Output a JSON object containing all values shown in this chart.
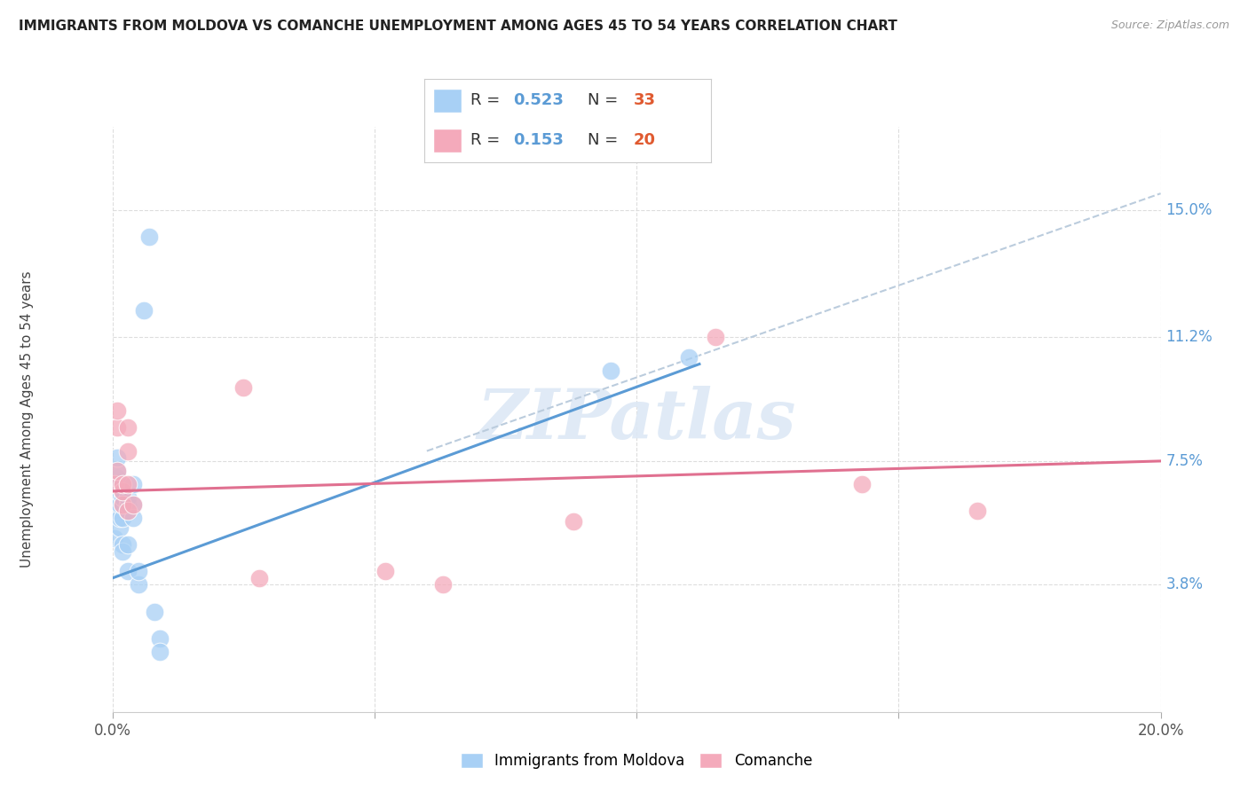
{
  "title": "IMMIGRANTS FROM MOLDOVA VS COMANCHE UNEMPLOYMENT AMONG AGES 45 TO 54 YEARS CORRELATION CHART",
  "source": "Source: ZipAtlas.com",
  "ylabel": "Unemployment Among Ages 45 to 54 years",
  "xlim": [
    0.0,
    0.2
  ],
  "ylim": [
    0.0,
    0.175
  ],
  "yticks": [
    0.038,
    0.075,
    0.112,
    0.15
  ],
  "ytick_labels": [
    "3.8%",
    "7.5%",
    "11.2%",
    "15.0%"
  ],
  "xticks": [
    0.0,
    0.05,
    0.1,
    0.15,
    0.2
  ],
  "xtick_labels": [
    "0.0%",
    "",
    "",
    "",
    "20.0%"
  ],
  "legend1_r": "0.523",
  "legend1_n": "33",
  "legend2_r": "0.153",
  "legend2_n": "20",
  "color_blue": "#A8D0F5",
  "color_pink": "#F4AABB",
  "color_line_blue": "#5B9BD5",
  "color_line_pink": "#E07090",
  "color_dashed": "#BBCCDD",
  "watermark": "ZIPatlas",
  "scatter_blue": [
    [
      0.0005,
      0.052
    ],
    [
      0.0008,
      0.06
    ],
    [
      0.001,
      0.064
    ],
    [
      0.001,
      0.068
    ],
    [
      0.001,
      0.07
    ],
    [
      0.001,
      0.072
    ],
    [
      0.001,
      0.076
    ],
    [
      0.0015,
      0.055
    ],
    [
      0.0015,
      0.058
    ],
    [
      0.0015,
      0.062
    ],
    [
      0.002,
      0.058
    ],
    [
      0.002,
      0.062
    ],
    [
      0.002,
      0.064
    ],
    [
      0.002,
      0.066
    ],
    [
      0.002,
      0.05
    ],
    [
      0.002,
      0.048
    ],
    [
      0.003,
      0.06
    ],
    [
      0.003,
      0.062
    ],
    [
      0.003,
      0.064
    ],
    [
      0.003,
      0.05
    ],
    [
      0.003,
      0.042
    ],
    [
      0.004,
      0.068
    ],
    [
      0.004,
      0.062
    ],
    [
      0.004,
      0.058
    ],
    [
      0.005,
      0.038
    ],
    [
      0.005,
      0.042
    ],
    [
      0.006,
      0.12
    ],
    [
      0.007,
      0.142
    ],
    [
      0.008,
      0.03
    ],
    [
      0.009,
      0.022
    ],
    [
      0.009,
      0.018
    ],
    [
      0.095,
      0.102
    ],
    [
      0.11,
      0.106
    ]
  ],
  "scatter_pink": [
    [
      0.0005,
      0.068
    ],
    [
      0.001,
      0.072
    ],
    [
      0.001,
      0.085
    ],
    [
      0.001,
      0.09
    ],
    [
      0.002,
      0.062
    ],
    [
      0.002,
      0.066
    ],
    [
      0.002,
      0.068
    ],
    [
      0.003,
      0.06
    ],
    [
      0.003,
      0.068
    ],
    [
      0.003,
      0.078
    ],
    [
      0.003,
      0.085
    ],
    [
      0.004,
      0.062
    ],
    [
      0.025,
      0.097
    ],
    [
      0.028,
      0.04
    ],
    [
      0.052,
      0.042
    ],
    [
      0.063,
      0.038
    ],
    [
      0.088,
      0.057
    ],
    [
      0.115,
      0.112
    ],
    [
      0.143,
      0.068
    ],
    [
      0.165,
      0.06
    ]
  ],
  "blue_line_x": [
    0.0,
    0.112
  ],
  "blue_line_y": [
    0.04,
    0.104
  ],
  "pink_line_x": [
    0.0,
    0.2
  ],
  "pink_line_y": [
    0.066,
    0.075
  ],
  "dashed_line_x": [
    0.06,
    0.2
  ],
  "dashed_line_y": [
    0.078,
    0.155
  ]
}
